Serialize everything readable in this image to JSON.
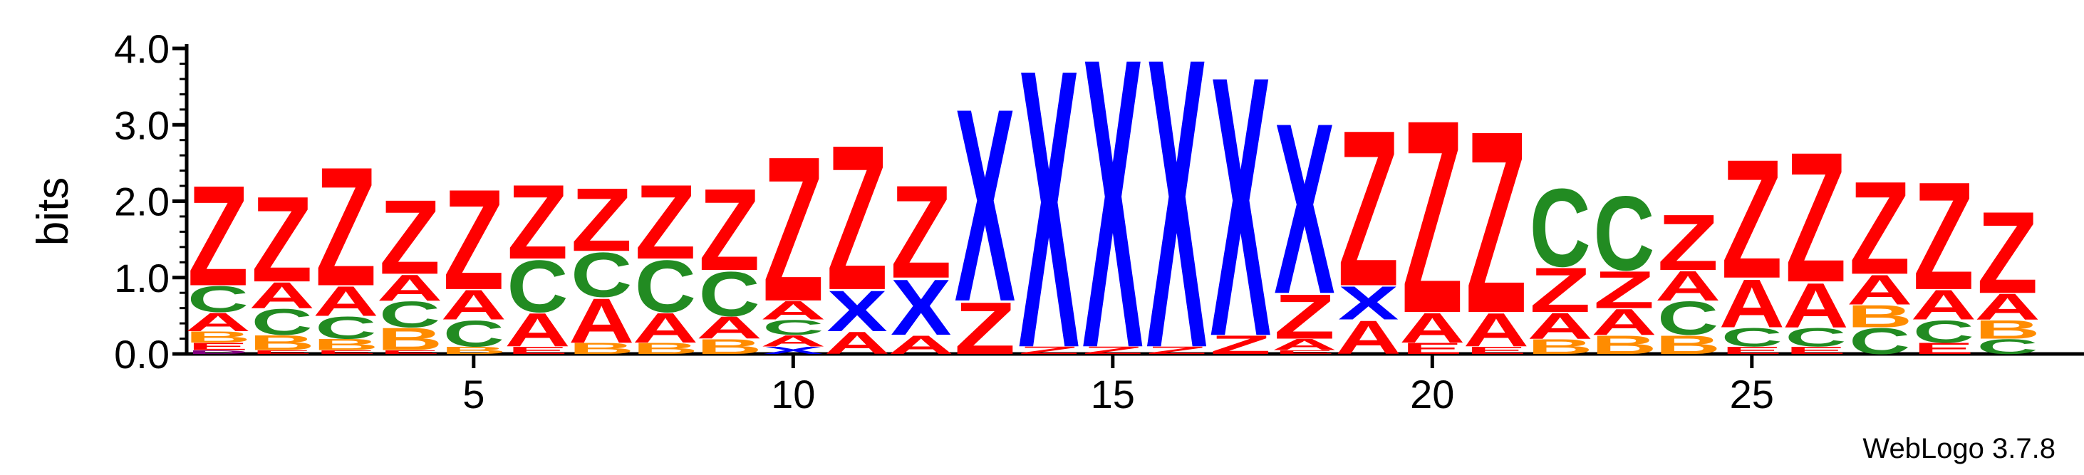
{
  "chart_data": {
    "type": "sequence-logo",
    "ylabel": "bits",
    "ylim": [
      0,
      4.0
    ],
    "yticks": [
      "0.0",
      "1.0",
      "2.0",
      "3.0",
      "4.0"
    ],
    "xticks": [
      5,
      10,
      15,
      20,
      25
    ],
    "xrange": [
      1,
      29
    ],
    "credit": "WebLogo 3.7.8",
    "colors": {
      "Z": "#ff0000",
      "X": "#0000ff",
      "C": "#228b22",
      "A": "#ff0000",
      "B": "#ff8c00",
      "D": "#800080",
      "E": "#ff0000"
    },
    "positions": [
      {
        "pos": 1,
        "stack": [
          [
            "D",
            0.05
          ],
          [
            "E",
            0.1
          ],
          [
            "B",
            0.15
          ],
          [
            "A",
            0.25
          ],
          [
            "C",
            0.35
          ],
          [
            "Z",
            1.35
          ]
        ]
      },
      {
        "pos": 2,
        "stack": [
          [
            "E",
            0.05
          ],
          [
            "B",
            0.2
          ],
          [
            "C",
            0.35
          ],
          [
            "A",
            0.35
          ],
          [
            "Z",
            1.15
          ]
        ]
      },
      {
        "pos": 3,
        "stack": [
          [
            "E",
            0.05
          ],
          [
            "B",
            0.15
          ],
          [
            "C",
            0.3
          ],
          [
            "A",
            0.4
          ],
          [
            "Z",
            1.6
          ]
        ]
      },
      {
        "pos": 4,
        "stack": [
          [
            "E",
            0.05
          ],
          [
            "B",
            0.3
          ],
          [
            "C",
            0.35
          ],
          [
            "A",
            0.35
          ],
          [
            "Z",
            1.0
          ]
        ]
      },
      {
        "pos": 5,
        "stack": [
          [
            "B",
            0.1
          ],
          [
            "C",
            0.35
          ],
          [
            "A",
            0.4
          ],
          [
            "Z",
            1.35
          ]
        ]
      },
      {
        "pos": 6,
        "stack": [
          [
            "E",
            0.1
          ],
          [
            "A",
            0.45
          ],
          [
            "C",
            0.7
          ],
          [
            "Z",
            1.0
          ]
        ]
      },
      {
        "pos": 7,
        "stack": [
          [
            "B",
            0.15
          ],
          [
            "A",
            0.6
          ],
          [
            "C",
            0.6
          ],
          [
            "Z",
            0.85
          ]
        ]
      },
      {
        "pos": 8,
        "stack": [
          [
            "B",
            0.15
          ],
          [
            "A",
            0.4
          ],
          [
            "C",
            0.7
          ],
          [
            "Z",
            1.0
          ]
        ]
      },
      {
        "pos": 9,
        "stack": [
          [
            "B",
            0.2
          ],
          [
            "A",
            0.3
          ],
          [
            "C",
            0.6
          ],
          [
            "Z",
            1.1
          ]
        ]
      },
      {
        "pos": 10,
        "stack": [
          [
            "X",
            0.1
          ],
          [
            "A",
            0.15
          ],
          [
            "C",
            0.2
          ],
          [
            "A",
            0.25
          ],
          [
            "Z",
            1.95
          ]
        ]
      },
      {
        "pos": 11,
        "stack": [
          [
            "A",
            0.3
          ],
          [
            "X",
            0.55
          ],
          [
            "Z",
            1.95
          ]
        ]
      },
      {
        "pos": 12,
        "stack": [
          [
            "A",
            0.25
          ],
          [
            "X",
            0.75
          ],
          [
            "Z",
            1.25
          ]
        ]
      },
      {
        "pos": 13,
        "stack": [
          [
            "Z",
            0.7
          ],
          [
            "X",
            2.6
          ]
        ]
      },
      {
        "pos": 14,
        "stack": [
          [
            "Z",
            0.1
          ],
          [
            "X",
            3.75
          ]
        ]
      },
      {
        "pos": 15,
        "stack": [
          [
            "Z",
            0.1
          ],
          [
            "X",
            3.9
          ]
        ]
      },
      {
        "pos": 16,
        "stack": [
          [
            "Z",
            0.1
          ],
          [
            "X",
            3.9
          ]
        ]
      },
      {
        "pos": 17,
        "stack": [
          [
            "Z",
            0.25
          ],
          [
            "X",
            3.5
          ]
        ]
      },
      {
        "pos": 18,
        "stack": [
          [
            "E",
            0.05
          ],
          [
            "A",
            0.15
          ],
          [
            "Z",
            0.6
          ],
          [
            "X",
            2.3
          ]
        ]
      },
      {
        "pos": 19,
        "stack": [
          [
            "A",
            0.45
          ],
          [
            "X",
            0.45
          ],
          [
            "Z",
            2.1
          ]
        ]
      },
      {
        "pos": 20,
        "stack": [
          [
            "E",
            0.15
          ],
          [
            "A",
            0.4
          ],
          [
            "Z",
            2.6
          ]
        ]
      },
      {
        "pos": 21,
        "stack": [
          [
            "E",
            0.1
          ],
          [
            "A",
            0.45
          ],
          [
            "Z",
            2.45
          ]
        ]
      },
      {
        "pos": 22,
        "stack": [
          [
            "B",
            0.2
          ],
          [
            "A",
            0.35
          ],
          [
            "Z",
            0.6
          ],
          [
            "C",
            1.05
          ]
        ]
      },
      {
        "pos": 23,
        "stack": [
          [
            "B",
            0.25
          ],
          [
            "A",
            0.35
          ],
          [
            "Z",
            0.5
          ],
          [
            "C",
            1.0
          ]
        ]
      },
      {
        "pos": 24,
        "stack": [
          [
            "B",
            0.25
          ],
          [
            "C",
            0.45
          ],
          [
            "A",
            0.4
          ],
          [
            "Z",
            0.75
          ]
        ]
      },
      {
        "pos": 25,
        "stack": [
          [
            "E",
            0.1
          ],
          [
            "C",
            0.25
          ],
          [
            "A",
            0.65
          ],
          [
            "Z",
            1.6
          ]
        ]
      },
      {
        "pos": 26,
        "stack": [
          [
            "E",
            0.1
          ],
          [
            "C",
            0.25
          ],
          [
            "A",
            0.6
          ],
          [
            "Z",
            1.75
          ]
        ]
      },
      {
        "pos": 27,
        "stack": [
          [
            "C",
            0.35
          ],
          [
            "B",
            0.3
          ],
          [
            "A",
            0.4
          ],
          [
            "Z",
            1.25
          ]
        ]
      },
      {
        "pos": 28,
        "stack": [
          [
            "E",
            0.15
          ],
          [
            "C",
            0.3
          ],
          [
            "A",
            0.4
          ],
          [
            "Z",
            1.45
          ]
        ]
      },
      {
        "pos": 29,
        "stack": [
          [
            "C",
            0.2
          ],
          [
            "B",
            0.25
          ],
          [
            "A",
            0.35
          ],
          [
            "Z",
            1.1
          ]
        ]
      }
    ]
  }
}
